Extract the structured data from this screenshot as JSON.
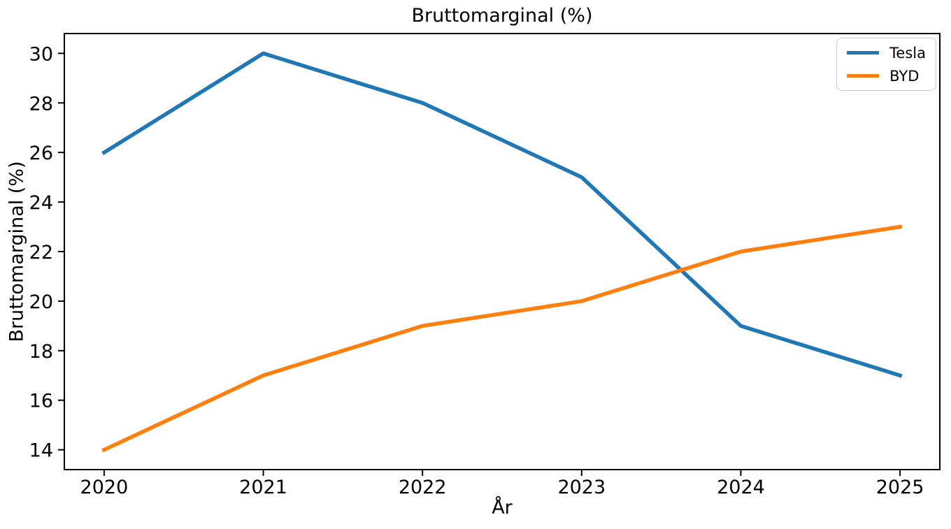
{
  "chart_data": {
    "type": "line",
    "title": "Bruttomarginal (%)",
    "xlabel": "År",
    "ylabel": "Bruttomarginal (%)",
    "x": [
      2020,
      2021,
      2022,
      2023,
      2024,
      2025
    ],
    "series": [
      {
        "name": "Tesla",
        "color": "#1f77b4",
        "values": [
          26,
          30,
          28,
          25,
          19,
          17
        ]
      },
      {
        "name": "BYD",
        "color": "#ff7f0e",
        "values": [
          14,
          17,
          19,
          20,
          22,
          23
        ]
      }
    ],
    "xticks": [
      "2020",
      "2021",
      "2022",
      "2023",
      "2024",
      "2025"
    ],
    "xtick_values": [
      2020,
      2021,
      2022,
      2023,
      2024,
      2025
    ],
    "yticks": [
      "14",
      "16",
      "18",
      "20",
      "22",
      "24",
      "26",
      "28",
      "30"
    ],
    "ytick_values": [
      14,
      16,
      18,
      20,
      22,
      24,
      26,
      28,
      30
    ],
    "xlim": [
      2019.75,
      2025.25
    ],
    "ylim": [
      13.2,
      30.8
    ],
    "grid": false,
    "legend_position": "upper right",
    "line_width": 5.5,
    "axis_color": "#000000",
    "background_color": "#ffffff"
  }
}
